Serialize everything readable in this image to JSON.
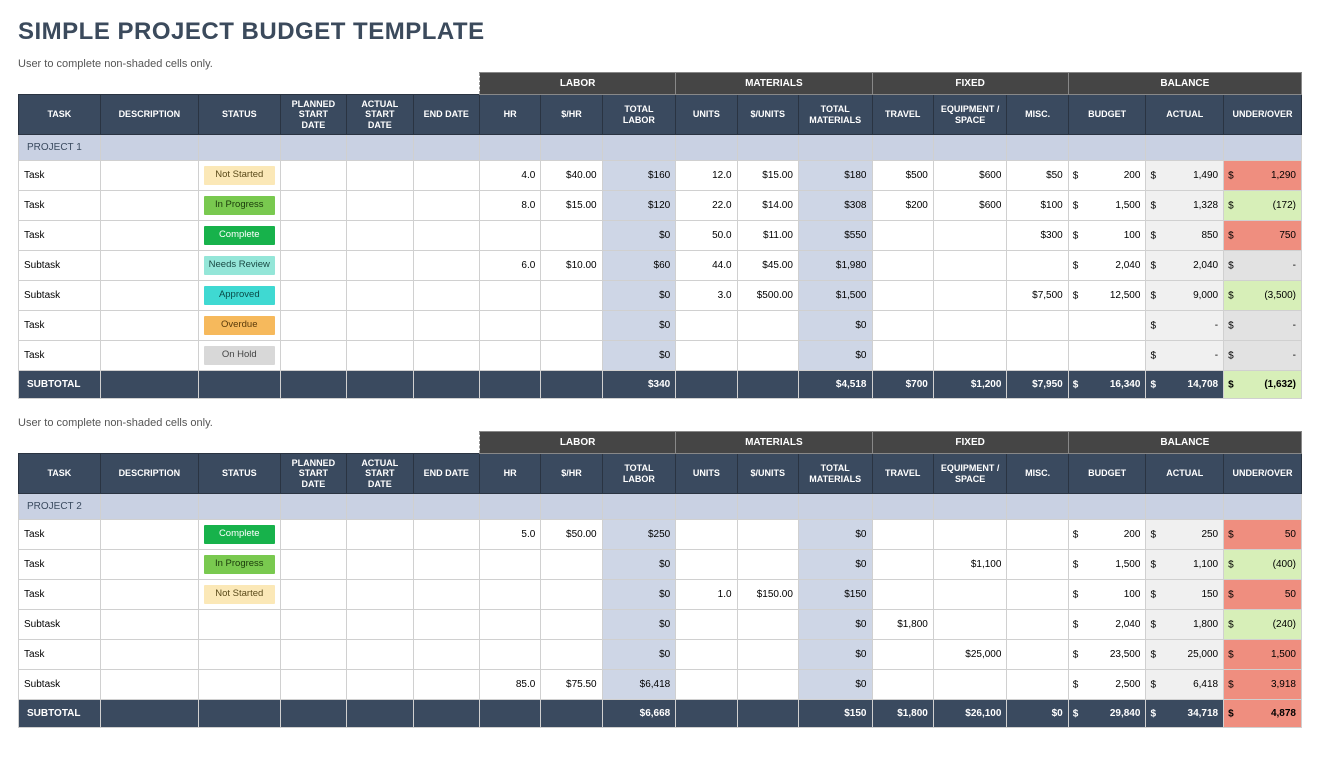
{
  "page_title": "SIMPLE PROJECT BUDGET TEMPLATE",
  "instruction": "User to complete non-shaded cells only.",
  "colors": {
    "title": "#3b4a5c",
    "group_header_bg": "#454545",
    "col_header_bg": "#3a4a5f",
    "project_row_bg": "#c9d1e3",
    "shaded_cell_bg": "#ced6e6",
    "actual_col_bg": "#f0f0f0",
    "uo_default_bg": "#e2e2e2",
    "uo_pos_bg": "#ef8e7f",
    "uo_neg_bg": "#d7efb8"
  },
  "status_styles": {
    "Not Started": {
      "bg": "#fbe8b7",
      "fg": "#5a4a1a"
    },
    "In Progress": {
      "bg": "#79c94f",
      "fg": "#1a3a0a"
    },
    "Complete": {
      "bg": "#17b24b",
      "fg": "#ffffff"
    },
    "Needs Review": {
      "bg": "#94e6d8",
      "fg": "#1a4a44"
    },
    "Approved": {
      "bg": "#3fd9d2",
      "fg": "#0a4a48"
    },
    "Overdue": {
      "bg": "#f6b95c",
      "fg": "#5a3a0a"
    },
    "On Hold": {
      "bg": "#d8d8d8",
      "fg": "#444444"
    }
  },
  "group_headers": [
    "LABOR",
    "MATERIALS",
    "FIXED",
    "BALANCE"
  ],
  "columns": {
    "task": "TASK",
    "description": "DESCRIPTION",
    "status": "STATUS",
    "planned_start": "PLANNED START DATE",
    "actual_start": "ACTUAL START DATE",
    "end_date": "END DATE",
    "hr": "HR",
    "rate": "$/HR",
    "total_labor": "TOTAL LABOR",
    "units": "UNITS",
    "unit_cost": "$/UNITS",
    "total_materials": "TOTAL MATERIALS",
    "travel": "TRAVEL",
    "equipment": "EQUIPMENT / SPACE",
    "misc": "MISC.",
    "budget": "BUDGET",
    "actual": "ACTUAL",
    "under_over": "UNDER/OVER"
  },
  "subtotal_label": "SUBTOTAL",
  "currency_symbol": "$",
  "projects": [
    {
      "name": "PROJECT 1",
      "rows": [
        {
          "task": "Task",
          "indent": 0,
          "status": "Not Started",
          "hr": "4.0",
          "rate": "$40.00",
          "total_labor": "$160",
          "units": "12.0",
          "unit_cost": "$15.00",
          "total_materials": "$180",
          "travel": "$500",
          "equipment": "$600",
          "misc": "$50",
          "budget": "200",
          "actual": "1,490",
          "under_over": "1,290",
          "uo_sign": "pos"
        },
        {
          "task": "Task",
          "indent": 0,
          "status": "In Progress",
          "hr": "8.0",
          "rate": "$15.00",
          "total_labor": "$120",
          "units": "22.0",
          "unit_cost": "$14.00",
          "total_materials": "$308",
          "travel": "$200",
          "equipment": "$600",
          "misc": "$100",
          "budget": "1,500",
          "actual": "1,328",
          "under_over": "(172)",
          "uo_sign": "neg"
        },
        {
          "task": "Task",
          "indent": 0,
          "status": "Complete",
          "hr": "",
          "rate": "",
          "total_labor": "$0",
          "units": "50.0",
          "unit_cost": "$11.00",
          "total_materials": "$550",
          "travel": "",
          "equipment": "",
          "misc": "$300",
          "budget": "100",
          "actual": "850",
          "under_over": "750",
          "uo_sign": "pos"
        },
        {
          "task": "Subtask",
          "indent": 1,
          "status": "Needs Review",
          "hr": "6.0",
          "rate": "$10.00",
          "total_labor": "$60",
          "units": "44.0",
          "unit_cost": "$45.00",
          "total_materials": "$1,980",
          "travel": "",
          "equipment": "",
          "misc": "",
          "budget": "2,040",
          "actual": "2,040",
          "under_over": "-",
          "uo_sign": "zero"
        },
        {
          "task": "Subtask",
          "indent": 1,
          "status": "Approved",
          "hr": "",
          "rate": "",
          "total_labor": "$0",
          "units": "3.0",
          "unit_cost": "$500.00",
          "total_materials": "$1,500",
          "travel": "",
          "equipment": "",
          "misc": "$7,500",
          "budget": "12,500",
          "actual": "9,000",
          "under_over": "(3,500)",
          "uo_sign": "neg"
        },
        {
          "task": "Task",
          "indent": 0,
          "status": "Overdue",
          "hr": "",
          "rate": "",
          "total_labor": "$0",
          "units": "",
          "unit_cost": "",
          "total_materials": "$0",
          "travel": "",
          "equipment": "",
          "misc": "",
          "budget": "",
          "actual": "-",
          "under_over": "-",
          "uo_sign": "zero"
        },
        {
          "task": "Task",
          "indent": 0,
          "status": "On Hold",
          "hr": "",
          "rate": "",
          "total_labor": "$0",
          "units": "",
          "unit_cost": "",
          "total_materials": "$0",
          "travel": "",
          "equipment": "",
          "misc": "",
          "budget": "",
          "actual": "-",
          "under_over": "-",
          "uo_sign": "zero"
        }
      ],
      "subtotal": {
        "total_labor": "$340",
        "total_materials": "$4,518",
        "travel": "$700",
        "equipment": "$1,200",
        "misc": "$7,950",
        "budget": "16,340",
        "actual": "14,708",
        "under_over": "(1,632)",
        "uo_sign": "neg"
      }
    },
    {
      "name": "PROJECT 2",
      "rows": [
        {
          "task": "Task",
          "indent": 0,
          "status": "Complete",
          "hr": "5.0",
          "rate": "$50.00",
          "total_labor": "$250",
          "units": "",
          "unit_cost": "",
          "total_materials": "$0",
          "travel": "",
          "equipment": "",
          "misc": "",
          "budget": "200",
          "actual": "250",
          "under_over": "50",
          "uo_sign": "pos"
        },
        {
          "task": "Task",
          "indent": 0,
          "status": "In Progress",
          "hr": "",
          "rate": "",
          "total_labor": "$0",
          "units": "",
          "unit_cost": "",
          "total_materials": "$0",
          "travel": "",
          "equipment": "$1,100",
          "misc": "",
          "budget": "1,500",
          "actual": "1,100",
          "under_over": "(400)",
          "uo_sign": "neg"
        },
        {
          "task": "Task",
          "indent": 0,
          "status": "Not Started",
          "hr": "",
          "rate": "",
          "total_labor": "$0",
          "units": "1.0",
          "unit_cost": "$150.00",
          "total_materials": "$150",
          "travel": "",
          "equipment": "",
          "misc": "",
          "budget": "100",
          "actual": "150",
          "under_over": "50",
          "uo_sign": "pos"
        },
        {
          "task": "Subtask",
          "indent": 1,
          "status": "",
          "hr": "",
          "rate": "",
          "total_labor": "$0",
          "units": "",
          "unit_cost": "",
          "total_materials": "$0",
          "travel": "$1,800",
          "equipment": "",
          "misc": "",
          "budget": "2,040",
          "actual": "1,800",
          "under_over": "(240)",
          "uo_sign": "neg"
        },
        {
          "task": "Task",
          "indent": 0,
          "status": "",
          "hr": "",
          "rate": "",
          "total_labor": "$0",
          "units": "",
          "unit_cost": "",
          "total_materials": "$0",
          "travel": "",
          "equipment": "$25,000",
          "misc": "",
          "budget": "23,500",
          "actual": "25,000",
          "under_over": "1,500",
          "uo_sign": "pos"
        },
        {
          "task": "Subtask",
          "indent": 1,
          "status": "",
          "hr": "85.0",
          "rate": "$75.50",
          "total_labor": "$6,418",
          "units": "",
          "unit_cost": "",
          "total_materials": "$0",
          "travel": "",
          "equipment": "",
          "misc": "",
          "budget": "2,500",
          "actual": "6,418",
          "under_over": "3,918",
          "uo_sign": "pos"
        }
      ],
      "subtotal": {
        "total_labor": "$6,668",
        "total_materials": "$150",
        "travel": "$1,800",
        "equipment": "$26,100",
        "misc": "$0",
        "budget": "29,840",
        "actual": "34,718",
        "under_over": "4,878",
        "uo_sign": "pos"
      }
    }
  ]
}
